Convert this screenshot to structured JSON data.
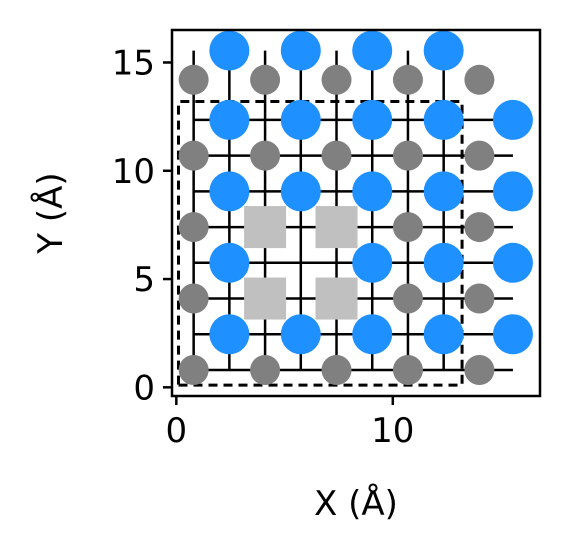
{
  "chart_data": {
    "type": "scatter",
    "xlabel": "X (Å)",
    "ylabel": "Y (Å)",
    "xlim": [
      -0.2,
      16.8
    ],
    "ylim": [
      -0.4,
      16.5
    ],
    "xticks": [
      0,
      10
    ],
    "yticks": [
      0,
      5,
      10,
      15
    ],
    "xtick_labels": [
      "0",
      "10"
    ],
    "ytick_labels": [
      "0",
      "5",
      "10",
      "15"
    ],
    "grid": false,
    "legend": "none",
    "colors": {
      "bonds": "#000000",
      "cell_boundary": "#000000",
      "large_atom": "#1e90ff",
      "small_atom": "#808080",
      "vacancy": "#c0c0c0"
    },
    "cell_boundary": [
      [
        0.1,
        0.1
      ],
      [
        13.2,
        0.1
      ],
      [
        13.2,
        13.2
      ],
      [
        0.1,
        13.2
      ]
    ],
    "bond_lines": {
      "horizontal_y": [
        0.8,
        2.45,
        4.1,
        5.75,
        7.4,
        9.05,
        10.7,
        12.35
      ],
      "vertical_x": [
        0.8,
        2.45,
        4.1,
        5.75,
        7.4,
        9.05,
        10.7,
        12.35
      ],
      "x_range": [
        0.8,
        15.55
      ],
      "y_range": [
        0.8,
        15.55
      ]
    },
    "series": [
      {
        "marker": "circle-large",
        "points": [
          [
            2.45,
            15.55
          ],
          [
            5.75,
            15.55
          ],
          [
            9.05,
            15.55
          ],
          [
            12.35,
            15.55
          ],
          [
            2.45,
            12.35
          ],
          [
            5.75,
            12.35
          ],
          [
            9.05,
            12.35
          ],
          [
            12.35,
            12.35
          ],
          [
            15.55,
            12.35
          ],
          [
            2.45,
            9.05
          ],
          [
            5.75,
            9.05
          ],
          [
            9.05,
            9.05
          ],
          [
            12.35,
            9.05
          ],
          [
            15.55,
            9.05
          ],
          [
            2.45,
            5.75
          ],
          [
            9.05,
            5.75
          ],
          [
            12.35,
            5.75
          ],
          [
            15.55,
            5.75
          ],
          [
            2.45,
            2.45
          ],
          [
            5.75,
            2.45
          ],
          [
            9.05,
            2.45
          ],
          [
            12.35,
            2.45
          ],
          [
            15.55,
            2.45
          ]
        ]
      },
      {
        "marker": "circle-small",
        "points": [
          [
            0.8,
            14.2
          ],
          [
            4.1,
            14.2
          ],
          [
            7.4,
            14.2
          ],
          [
            10.7,
            14.2
          ],
          [
            14.0,
            14.2
          ],
          [
            0.8,
            10.7
          ],
          [
            4.1,
            10.7
          ],
          [
            7.4,
            10.7
          ],
          [
            10.7,
            10.7
          ],
          [
            14.0,
            10.7
          ],
          [
            0.8,
            7.4
          ],
          [
            10.7,
            7.4
          ],
          [
            14.0,
            7.4
          ],
          [
            0.8,
            4.1
          ],
          [
            10.7,
            4.1
          ],
          [
            14.0,
            4.1
          ],
          [
            0.8,
            0.8
          ],
          [
            4.1,
            0.8
          ],
          [
            7.4,
            0.8
          ],
          [
            10.7,
            0.8
          ],
          [
            14.0,
            0.8
          ]
        ]
      },
      {
        "marker": "square",
        "points": [
          [
            4.1,
            7.4
          ],
          [
            7.4,
            7.4
          ],
          [
            4.1,
            4.1
          ],
          [
            7.4,
            4.1
          ]
        ]
      }
    ]
  }
}
